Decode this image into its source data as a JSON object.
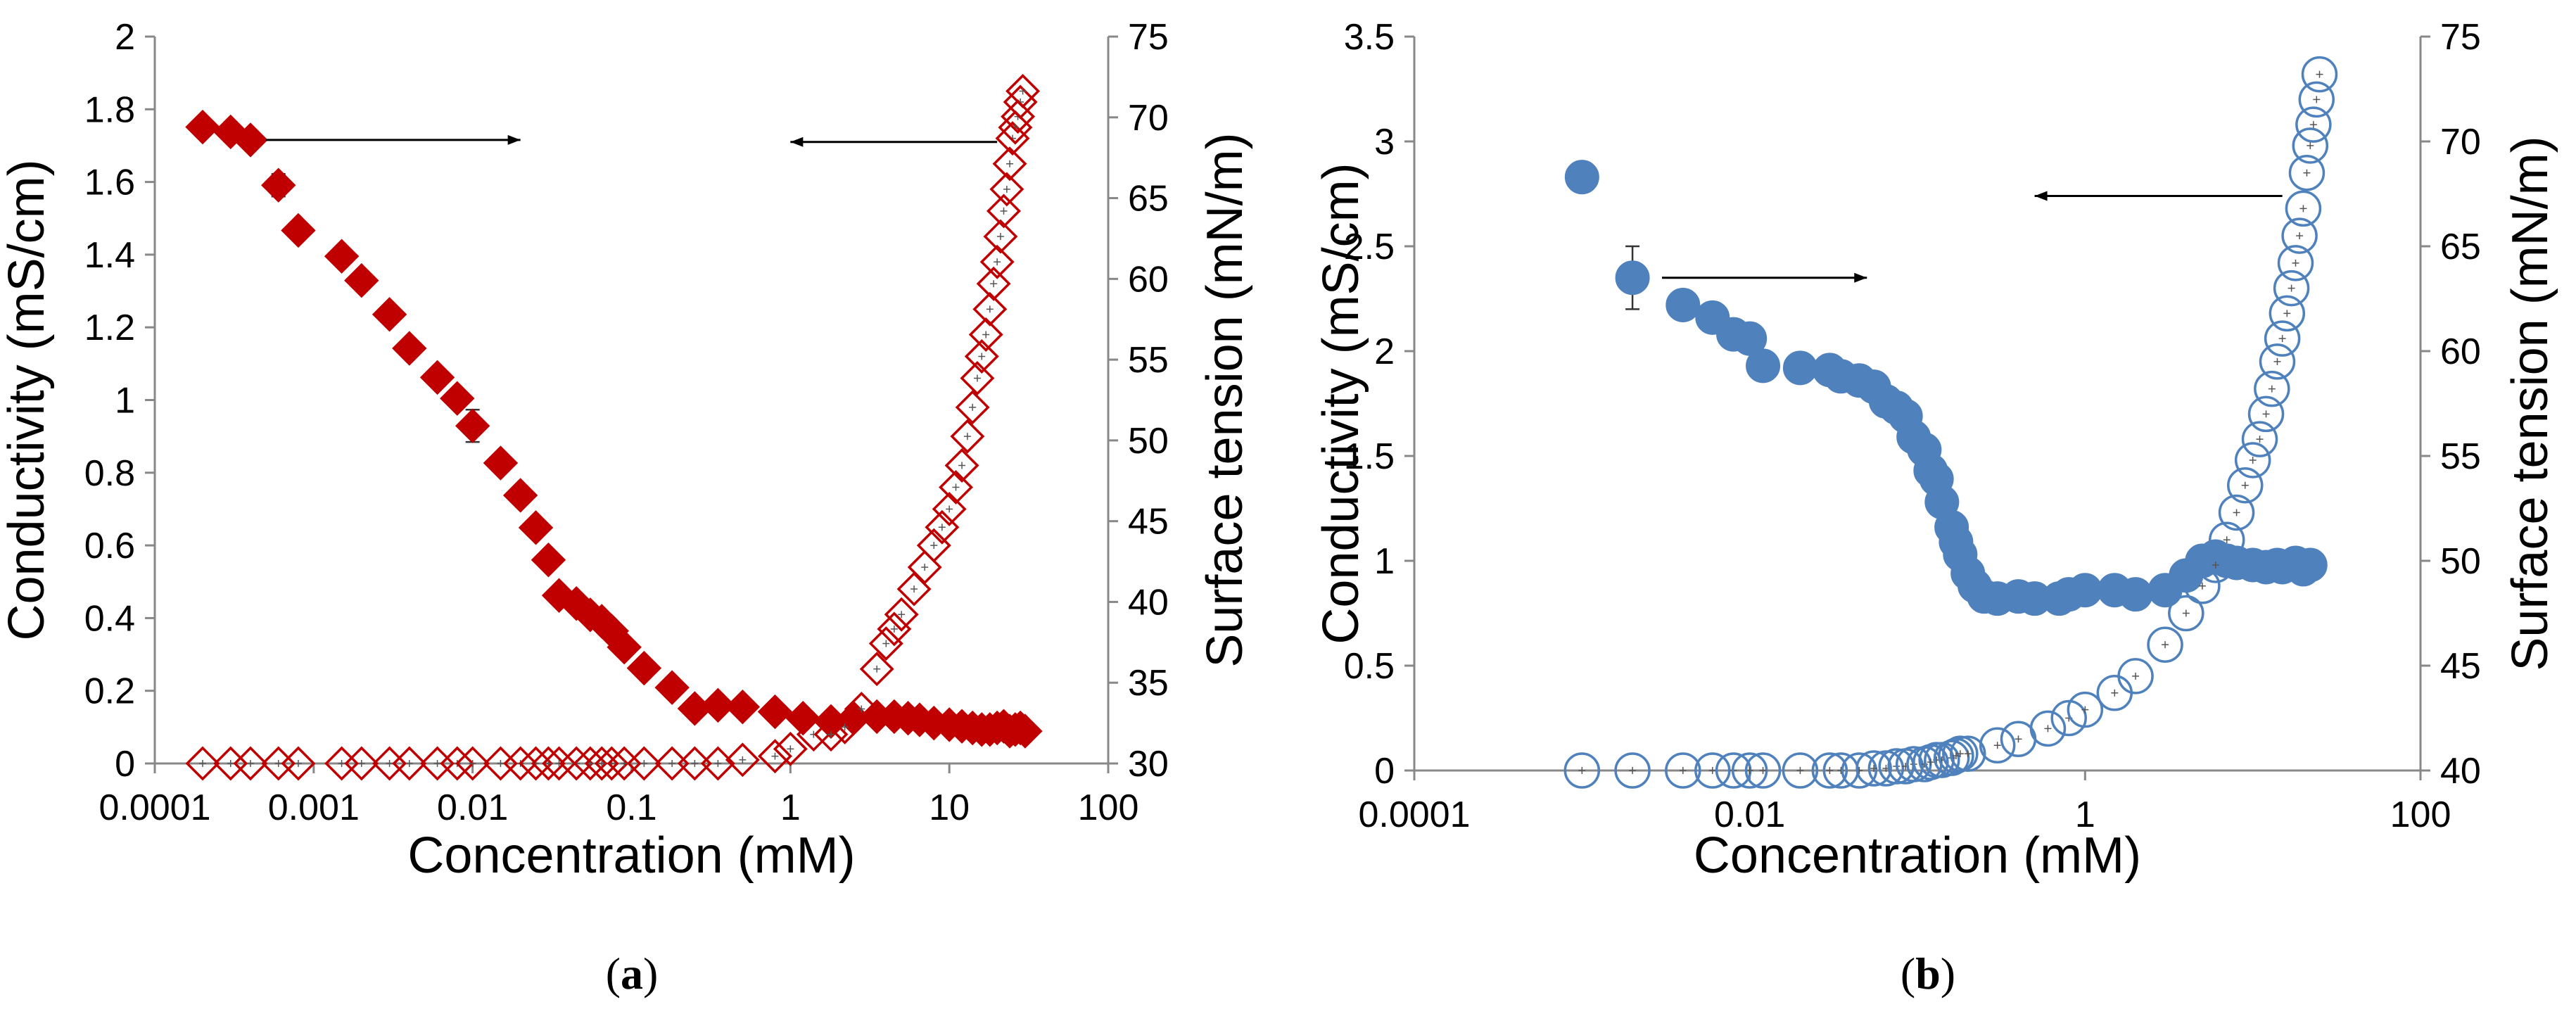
{
  "chart_data": [
    {
      "type": "scatter",
      "panel_label": "a",
      "xlabel": "Concentration (mM)",
      "ylabel_left": "Conductivity (mS/cm)",
      "ylabel_right": "Surface tension (mN/m)",
      "xscale": "log",
      "xlim": [
        0.0001,
        100
      ],
      "x_ticks": [
        "0.0001",
        "0.001",
        "0.01",
        "0.1",
        "1",
        "10",
        "100"
      ],
      "ylim_left": [
        0,
        2
      ],
      "y_ticks_left": [
        "0",
        "0.2",
        "0.4",
        "0.6",
        "0.8",
        "1",
        "1.2",
        "1.4",
        "1.6",
        "1.8",
        "2"
      ],
      "ylim_right": [
        30,
        75
      ],
      "y_ticks_right": [
        "30",
        "35",
        "40",
        "45",
        "50",
        "55",
        "60",
        "65",
        "70",
        "75"
      ],
      "series": [
        {
          "name": "Surface tension",
          "axis": "right",
          "marker": "diamond-filled",
          "color": "#c00000",
          "points": [
            [
              0.0002,
              69.4
            ],
            [
              0.0003,
              69.1
            ],
            [
              0.0004,
              68.6
            ],
            [
              0.0006,
              65.8
            ],
            [
              0.0008,
              63.0
            ],
            [
              0.0015,
              61.4
            ],
            [
              0.002,
              59.9
            ],
            [
              0.003,
              57.8
            ],
            [
              0.004,
              55.7
            ],
            [
              0.006,
              53.9
            ],
            [
              0.008,
              52.6
            ],
            [
              0.01,
              50.9
            ],
            [
              0.015,
              48.6
            ],
            [
              0.02,
              46.6
            ],
            [
              0.025,
              44.6
            ],
            [
              0.03,
              42.6
            ],
            [
              0.035,
              40.4
            ],
            [
              0.045,
              39.9
            ],
            [
              0.055,
              39.2
            ],
            [
              0.065,
              38.8
            ],
            [
              0.075,
              38.2
            ],
            [
              0.09,
              37.2
            ],
            [
              0.12,
              35.9
            ],
            [
              0.18,
              34.7
            ],
            [
              0.25,
              33.4
            ],
            [
              0.35,
              33.6
            ],
            [
              0.5,
              33.5
            ],
            [
              0.8,
              33.2
            ],
            [
              1.2,
              32.8
            ],
            [
              1.8,
              32.6
            ],
            [
              2.5,
              32.8
            ],
            [
              3.5,
              32.9
            ],
            [
              4.5,
              32.9
            ],
            [
              5.5,
              32.8
            ],
            [
              6.5,
              32.7
            ],
            [
              8,
              32.5
            ],
            [
              10,
              32.4
            ],
            [
              12,
              32.3
            ],
            [
              14,
              32.2
            ],
            [
              16,
              32.1
            ],
            [
              18,
              32.1
            ],
            [
              20,
              32.2
            ],
            [
              22,
              32.3
            ],
            [
              24,
              32.0
            ],
            [
              26,
              32.1
            ],
            [
              28,
              32.2
            ],
            [
              30,
              32.0
            ]
          ],
          "errors": [
            [
              0.0003,
              0.6
            ],
            [
              0.0004,
              0.5
            ],
            [
              0.0006,
              0.7
            ],
            [
              0.0008,
              0.5
            ],
            [
              0.01,
              1.0
            ],
            [
              0.012,
              1.5
            ],
            [
              0.6,
              0.4
            ]
          ]
        },
        {
          "name": "Conductivity",
          "axis": "left",
          "marker": "diamond-open",
          "color": "#c00000",
          "points": [
            [
              0.0002,
              0
            ],
            [
              0.0003,
              0
            ],
            [
              0.0004,
              0
            ],
            [
              0.0006,
              0
            ],
            [
              0.0008,
              0
            ],
            [
              0.0015,
              0
            ],
            [
              0.002,
              0
            ],
            [
              0.003,
              0
            ],
            [
              0.004,
              0
            ],
            [
              0.006,
              0
            ],
            [
              0.008,
              0
            ],
            [
              0.01,
              0
            ],
            [
              0.015,
              0
            ],
            [
              0.02,
              0
            ],
            [
              0.025,
              0
            ],
            [
              0.03,
              0
            ],
            [
              0.035,
              0
            ],
            [
              0.045,
              0
            ],
            [
              0.055,
              0
            ],
            [
              0.065,
              0
            ],
            [
              0.075,
              0
            ],
            [
              0.09,
              0
            ],
            [
              0.12,
              0
            ],
            [
              0.18,
              0
            ],
            [
              0.25,
              0
            ],
            [
              0.35,
              0
            ],
            [
              0.5,
              0.01
            ],
            [
              0.8,
              0.02
            ],
            [
              1.0,
              0.04
            ],
            [
              1.4,
              0.08
            ],
            [
              1.8,
              0.08
            ],
            [
              2.2,
              0.1
            ],
            [
              2.8,
              0.15
            ],
            [
              3.5,
              0.26
            ],
            [
              4.0,
              0.33
            ],
            [
              4.5,
              0.37
            ],
            [
              5.0,
              0.41
            ],
            [
              6.0,
              0.48
            ],
            [
              7.0,
              0.54
            ],
            [
              8.0,
              0.6
            ],
            [
              9.0,
              0.65
            ],
            [
              10.0,
              0.7
            ],
            [
              11,
              0.76
            ],
            [
              12,
              0.82
            ],
            [
              13,
              0.9
            ],
            [
              14,
              0.98
            ],
            [
              15,
              1.06
            ],
            [
              16,
              1.12
            ],
            [
              17,
              1.18
            ],
            [
              18,
              1.25
            ],
            [
              19,
              1.32
            ],
            [
              20,
              1.38
            ],
            [
              21,
              1.45
            ],
            [
              22,
              1.52
            ],
            [
              23,
              1.58
            ],
            [
              24,
              1.65
            ],
            [
              25,
              1.72
            ],
            [
              26,
              1.75
            ],
            [
              27,
              1.78
            ],
            [
              28,
              1.82
            ],
            [
              29,
              1.85
            ]
          ]
        }
      ],
      "annotations": [
        {
          "type": "arrow",
          "direction": "right",
          "meaning": "points to right axis",
          "y_right": 68.6,
          "x_from": 0.0005,
          "x_to": 0.02
        },
        {
          "type": "arrow",
          "direction": "left",
          "meaning": "points to left axis",
          "y_left": 1.71,
          "x_from": 20,
          "x_to": 1.0
        }
      ]
    },
    {
      "type": "scatter",
      "panel_label": "b",
      "xlabel": "Concentration (mM)",
      "ylabel_left": "Conductivity (mS/cm)",
      "ylabel_right": "Surface tension (mN/m)",
      "xscale": "log",
      "xlim": [
        0.0001,
        100
      ],
      "x_ticks": [
        "0.0001",
        "0.01",
        "1",
        "100"
      ],
      "ylim_left": [
        0,
        3.5
      ],
      "y_ticks_left": [
        "0",
        "0.5",
        "1",
        "1.5",
        "2",
        "2.5",
        "3",
        "3.5"
      ],
      "ylim_right": [
        40,
        75
      ],
      "y_ticks_right": [
        "40",
        "45",
        "50",
        "55",
        "60",
        "65",
        "70",
        "75"
      ],
      "series": [
        {
          "name": "Surface tension",
          "axis": "right",
          "marker": "circle-filled",
          "color": "#4f81bd",
          "points": [
            [
              0.001,
              68.3
            ],
            [
              0.002,
              63.5
            ],
            [
              0.004,
              62.2
            ],
            [
              0.006,
              61.6
            ],
            [
              0.008,
              60.8
            ],
            [
              0.01,
              60.6
            ],
            [
              0.012,
              59.3
            ],
            [
              0.02,
              59.2
            ],
            [
              0.03,
              59.1
            ],
            [
              0.035,
              58.8
            ],
            [
              0.045,
              58.6
            ],
            [
              0.055,
              58.3
            ],
            [
              0.065,
              57.6
            ],
            [
              0.075,
              57.3
            ],
            [
              0.085,
              56.9
            ],
            [
              0.095,
              55.9
            ],
            [
              0.11,
              55.3
            ],
            [
              0.12,
              54.3
            ],
            [
              0.13,
              53.9
            ],
            [
              0.14,
              52.8
            ],
            [
              0.16,
              51.6
            ],
            [
              0.17,
              50.9
            ],
            [
              0.18,
              50.3
            ],
            [
              0.2,
              49.4
            ],
            [
              0.22,
              48.8
            ],
            [
              0.25,
              48.3
            ],
            [
              0.3,
              48.2
            ],
            [
              0.4,
              48.3
            ],
            [
              0.5,
              48.2
            ],
            [
              0.7,
              48.2
            ],
            [
              0.8,
              48.4
            ],
            [
              1.0,
              48.6
            ],
            [
              1.5,
              48.6
            ],
            [
              2.0,
              48.4
            ],
            [
              3.0,
              48.6
            ],
            [
              4.0,
              49.3
            ],
            [
              5.0,
              50.0
            ],
            [
              6.0,
              50.2
            ],
            [
              7.0,
              50.0
            ],
            [
              8.0,
              49.9
            ],
            [
              10,
              49.8
            ],
            [
              12,
              49.7
            ],
            [
              14,
              49.8
            ],
            [
              15,
              49.7
            ],
            [
              18,
              49.9
            ],
            [
              20,
              49.6
            ],
            [
              22,
              49.8
            ]
          ],
          "errors": [
            [
              0.001,
              0.5
            ],
            [
              0.002,
              1.5
            ],
            [
              0.03,
              0.5
            ],
            [
              0.06,
              0.4
            ],
            [
              10,
              0.5
            ],
            [
              20,
              0.7
            ]
          ]
        },
        {
          "name": "Conductivity",
          "axis": "left",
          "marker": "circle-open",
          "color": "#4f81bd",
          "points": [
            [
              0.001,
              0
            ],
            [
              0.002,
              0
            ],
            [
              0.004,
              0
            ],
            [
              0.006,
              0
            ],
            [
              0.008,
              0
            ],
            [
              0.01,
              0
            ],
            [
              0.012,
              0
            ],
            [
              0.02,
              0
            ],
            [
              0.03,
              0
            ],
            [
              0.035,
              0
            ],
            [
              0.045,
              0
            ],
            [
              0.055,
              0.01
            ],
            [
              0.065,
              0.01
            ],
            [
              0.075,
              0.02
            ],
            [
              0.085,
              0.02
            ],
            [
              0.095,
              0.03
            ],
            [
              0.11,
              0.03
            ],
            [
              0.12,
              0.04
            ],
            [
              0.13,
              0.05
            ],
            [
              0.14,
              0.05
            ],
            [
              0.16,
              0.06
            ],
            [
              0.17,
              0.07
            ],
            [
              0.18,
              0.08
            ],
            [
              0.2,
              0.08
            ],
            [
              0.3,
              0.12
            ],
            [
              0.4,
              0.15
            ],
            [
              0.6,
              0.2
            ],
            [
              0.8,
              0.25
            ],
            [
              1.0,
              0.29
            ],
            [
              1.5,
              0.37
            ],
            [
              2.0,
              0.45
            ],
            [
              3.0,
              0.6
            ],
            [
              4.0,
              0.75
            ],
            [
              5.0,
              0.88
            ],
            [
              6.0,
              0.98
            ],
            [
              7.0,
              1.1
            ],
            [
              8.0,
              1.23
            ],
            [
              9.0,
              1.36
            ],
            [
              10,
              1.48
            ],
            [
              11,
              1.58
            ],
            [
              12,
              1.7
            ],
            [
              13,
              1.82
            ],
            [
              14,
              1.95
            ],
            [
              15,
              2.06
            ],
            [
              16,
              2.18
            ],
            [
              17,
              2.3
            ],
            [
              18,
              2.42
            ],
            [
              19,
              2.55
            ],
            [
              20,
              2.68
            ],
            [
              21,
              2.85
            ],
            [
              22,
              2.98
            ],
            [
              23,
              3.08
            ],
            [
              24,
              3.2
            ],
            [
              25,
              3.32
            ]
          ]
        }
      ],
      "annotations": [
        {
          "type": "arrow",
          "direction": "right",
          "meaning": "points to right axis",
          "y_right": 63.5,
          "x_from": 0.003,
          "x_to": 0.05
        },
        {
          "type": "arrow",
          "direction": "left",
          "meaning": "points to left axis",
          "y_left": 2.74,
          "x_from": 15,
          "x_to": 0.5
        }
      ]
    }
  ]
}
